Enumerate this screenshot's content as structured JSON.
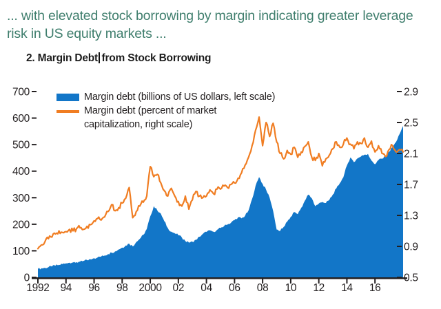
{
  "caption": {
    "line1": "... with elevated stock borrowing by margin indicating greater leverage",
    "line2": "risk in US equity markets ..."
  },
  "chart_title": {
    "part1": "2. Margin Debt",
    "part2": "from Stock Borrowing"
  },
  "legend": {
    "item1_label": "Margin debt (billions of US dollars, left scale)",
    "item2_line1": "Margin debt (percent of market",
    "item2_line2": "capitalization, right scale)"
  },
  "colors": {
    "accent_blue": "#1276c8",
    "accent_orange": "#f07d22",
    "heading_green": "#3f7e6d",
    "text_dark": "#231f20"
  },
  "chart_data": {
    "type": "area+line combo",
    "title": "2. Margin Debt from Stock Borrowing",
    "grid": false,
    "legend_position": "top-left inside plot",
    "x_start": 1992,
    "x_step": 0.25,
    "x_range": [
      1992,
      2018.1
    ],
    "x_ticks": [
      "1992",
      "94",
      "96",
      "98",
      "2000",
      "02",
      "04",
      "06",
      "08",
      "10",
      "12",
      "14",
      "16"
    ],
    "x_tick_years": [
      1992,
      1994,
      1996,
      1998,
      2000,
      2002,
      2004,
      2006,
      2008,
      2010,
      2012,
      2014,
      2016
    ],
    "left_axis": {
      "range": [
        0,
        700
      ],
      "ticks": [
        0,
        100,
        200,
        300,
        400,
        500,
        600,
        700
      ]
    },
    "right_axis": {
      "range": [
        0.5,
        2.9
      ],
      "ticks": [
        0.5,
        0.9,
        1.3,
        1.7,
        2.1,
        2.5,
        2.9
      ]
    },
    "series": [
      {
        "name": "Margin debt (billions of US dollars, left scale)",
        "type": "area",
        "axis": "left",
        "color": "#1276c8",
        "values": [
          32,
          34,
          36,
          38,
          41,
          44,
          47,
          50,
          53,
          55,
          56,
          57,
          59,
          62,
          65,
          68,
          72,
          75,
          78,
          82,
          88,
          93,
          98,
          105,
          112,
          120,
          127,
          117,
          133,
          145,
          160,
          182,
          230,
          268,
          252,
          240,
          212,
          186,
          172,
          166,
          159,
          150,
          137,
          131,
          134,
          142,
          153,
          164,
          171,
          177,
          172,
          179,
          186,
          193,
          199,
          206,
          216,
          226,
          222,
          232,
          252,
          295,
          345,
          378,
          352,
          330,
          300,
          250,
          180,
          175,
          190,
          210,
          228,
          246,
          238,
          262,
          288,
          312,
          298,
          268,
          278,
          284,
          280,
          292,
          312,
          335,
          355,
          377,
          421,
          452,
          434,
          448,
          455,
          462,
          465,
          440,
          426,
          442,
          447,
          455,
          473,
          490,
          510,
          540,
          570
        ]
      },
      {
        "name": "Margin debt (percent of market capitalization, right scale)",
        "type": "line",
        "axis": "right",
        "color": "#f07d22",
        "values": [
          0.87,
          0.92,
          0.96,
          1.0,
          1.02,
          1.06,
          1.1,
          1.08,
          1.09,
          1.12,
          1.1,
          1.13,
          1.14,
          1.12,
          1.16,
          1.18,
          1.23,
          1.26,
          1.24,
          1.28,
          1.35,
          1.44,
          1.36,
          1.4,
          1.46,
          1.52,
          1.66,
          1.27,
          1.35,
          1.42,
          1.47,
          1.55,
          1.93,
          1.8,
          1.83,
          1.72,
          1.62,
          1.55,
          1.65,
          1.55,
          1.48,
          1.42,
          1.55,
          1.38,
          1.5,
          1.61,
          1.55,
          1.53,
          1.55,
          1.63,
          1.58,
          1.64,
          1.64,
          1.68,
          1.66,
          1.7,
          1.72,
          1.78,
          1.85,
          1.95,
          2.05,
          2.2,
          2.4,
          2.57,
          2.2,
          2.5,
          2.32,
          2.49,
          2.25,
          2.1,
          2.03,
          2.14,
          2.09,
          2.18,
          2.05,
          2.12,
          2.19,
          2.25,
          2.05,
          2.01,
          2.1,
          1.94,
          2.03,
          2.08,
          2.16,
          2.25,
          2.18,
          2.22,
          2.3,
          2.22,
          2.16,
          2.25,
          2.23,
          2.3,
          2.18,
          2.26,
          2.12,
          2.2,
          2.1,
          2.06,
          2.15,
          2.2,
          2.12,
          2.15,
          2.12
        ]
      }
    ]
  }
}
